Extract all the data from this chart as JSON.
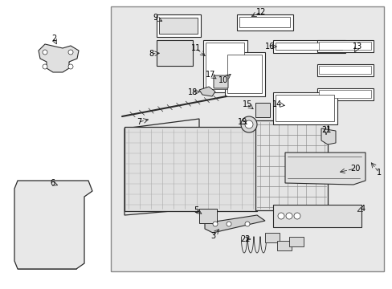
{
  "bg_color": "#ffffff",
  "panel_bg": "#e8e8e8",
  "lc": "#2a2a2a",
  "fig_width": 4.89,
  "fig_height": 3.6,
  "dpi": 100
}
